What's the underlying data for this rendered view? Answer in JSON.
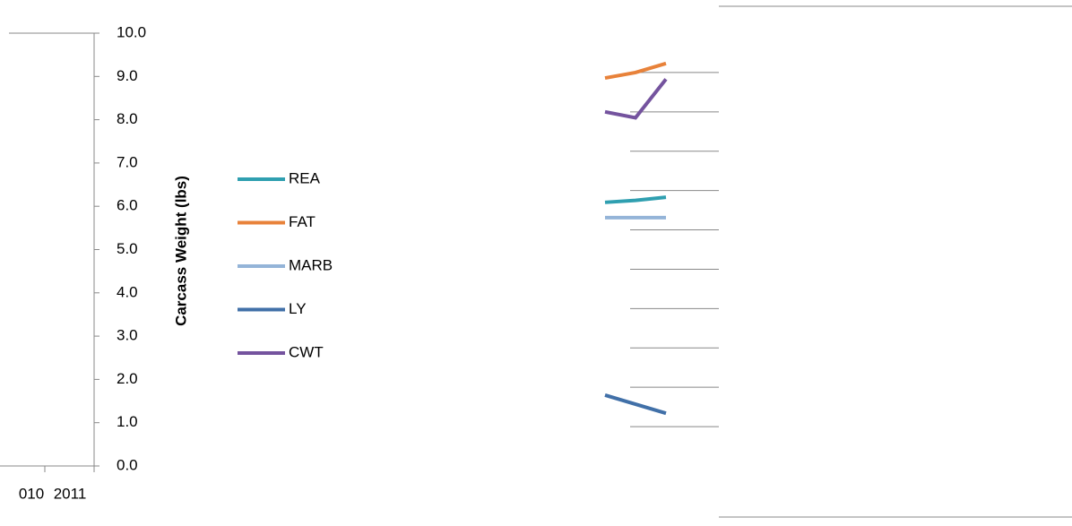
{
  "chart_data": [
    {
      "type": "axis",
      "ylabel": "Carcass Weight (lbs)",
      "categories": [
        "010",
        "2011"
      ],
      "ylim": [
        0,
        10
      ],
      "yticks": [
        {
          "value": 0,
          "label": "0.0"
        },
        {
          "value": 1,
          "label": "1.0"
        },
        {
          "value": 2,
          "label": "2.0"
        },
        {
          "value": 3,
          "label": "3.0"
        },
        {
          "value": 4,
          "label": "4.0"
        },
        {
          "value": 5,
          "label": "5.0"
        },
        {
          "value": 6,
          "label": "6.0"
        },
        {
          "value": 7,
          "label": "7.0"
        },
        {
          "value": 8,
          "label": "8.0"
        },
        {
          "value": 9,
          "label": "9.0"
        },
        {
          "value": 10,
          "label": "10.0"
        }
      ]
    },
    {
      "type": "line",
      "categories": [
        null,
        null,
        null
      ],
      "ylim": [
        0,
        11
      ],
      "yticks": [
        1,
        2,
        3,
        4,
        5,
        6,
        7,
        8,
        9,
        10
      ],
      "grid": true,
      "series": [
        {
          "name": "REA",
          "color": "#2f9fb0",
          "values": [
            6.7,
            6.75,
            6.83
          ]
        },
        {
          "name": "FAT",
          "color": "#e8823a",
          "values": [
            9.86,
            10.0,
            10.23
          ]
        },
        {
          "name": "MARB",
          "color": "#94b4d8",
          "values": [
            6.31,
            6.31,
            6.31
          ]
        },
        {
          "name": "LY",
          "color": "#4170a8",
          "values": [
            1.8,
            1.57,
            1.34
          ]
        },
        {
          "name": "CWT",
          "color": "#74539e",
          "values": [
            9.0,
            8.85,
            9.83
          ]
        }
      ]
    }
  ]
}
